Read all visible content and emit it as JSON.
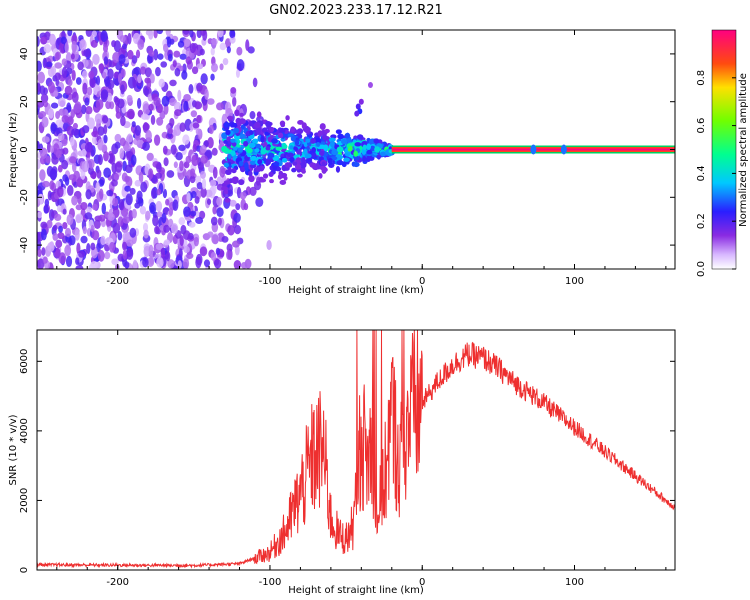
{
  "figure": {
    "title": "GN02.2023.233.17.12.R21"
  },
  "chart_data": [
    {
      "type": "heatmap",
      "xlabel": "Height of straight line (km)",
      "ylabel": "Frequency (Hz)",
      "xlim": [
        -253,
        166
      ],
      "ylim": [
        -50,
        50
      ],
      "xticks": [
        -200,
        -100,
        0,
        100
      ],
      "yticks": [
        -40,
        -20,
        0,
        20,
        40
      ],
      "colorbar": {
        "label": "Normalized spectral amplitude",
        "range": [
          0,
          1
        ],
        "ticks": [
          0.0,
          0.2,
          0.4,
          0.6,
          0.8
        ],
        "colormap": "white-purple-blue-cyan-green-yellow-red-magenta"
      },
      "features": {
        "noise_region_x": [
          -253,
          -120
        ],
        "signal_band_center_hz": 0,
        "strong_line_x": [
          -20,
          166
        ],
        "scatter_region_x": [
          -130,
          -20
        ]
      }
    },
    {
      "type": "line",
      "xlabel": "Height of straight line (km)",
      "ylabel": "SNR (10 * v/v)",
      "xlim": [
        -253,
        166
      ],
      "ylim": [
        0,
        6900
      ],
      "xticks": [
        -200,
        -100,
        0,
        100
      ],
      "yticks": [
        0,
        2000,
        4000,
        6000
      ],
      "color": "#ee2f2f",
      "series": [
        {
          "x": [
            -253,
            -200,
            -150,
            -120,
            -100,
            -90,
            -80,
            -72,
            -65,
            -60,
            -55,
            -50,
            -45,
            -40,
            -36,
            -33,
            -30,
            -25,
            -20,
            -15,
            -10,
            -5,
            0,
            10,
            20,
            30,
            40,
            50,
            60,
            80,
            100,
            120,
            140,
            160,
            166
          ],
          "y": [
            150,
            140,
            130,
            180,
            500,
            1100,
            2200,
            3200,
            3500,
            1500,
            1000,
            900,
            1300,
            4000,
            3000,
            3800,
            1500,
            2500,
            4500,
            3000,
            4200,
            4600,
            4800,
            5400,
            5900,
            6200,
            6100,
            5800,
            5400,
            4800,
            4100,
            3400,
            2700,
            2000,
            1800
          ]
        }
      ]
    }
  ]
}
